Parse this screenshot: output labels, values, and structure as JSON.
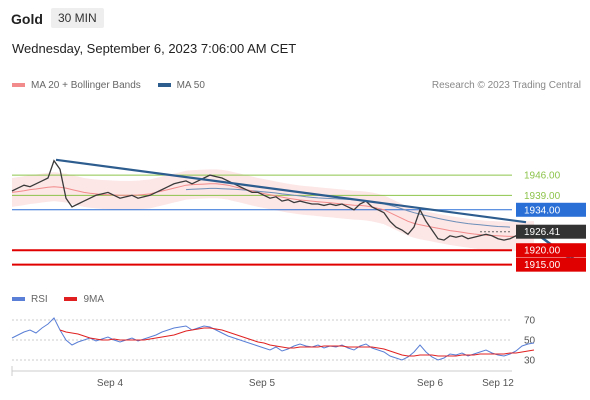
{
  "header": {
    "symbol": "Gold",
    "timeframe": "30 MIN"
  },
  "datetime": "Wednesday, September 6, 2023 7:06:00 AM CET",
  "legend": [
    {
      "label": "MA 20 + Bollinger Bands",
      "color": "#f28b8b"
    },
    {
      "label": "MA 50",
      "color": "#2d5c8f"
    }
  ],
  "credit": "Research © 2023 Trading Central",
  "rsi_legend": [
    {
      "label": "RSI",
      "color": "#5a7fd6"
    },
    {
      "label": "9MA",
      "color": "#e02020"
    }
  ],
  "colors": {
    "resistance": "#8dc44b",
    "pivot": "#2a6fd6",
    "support": "#e00000",
    "trendline": "#2d5c8f",
    "price": "#3a3a3a"
  },
  "chart_data": [
    {
      "type": "line",
      "y_range": [
        1909,
        1972
      ],
      "x_ticks": [
        "Sep 4",
        "Sep 5",
        "Sep 6",
        "Sep 12"
      ],
      "levels": [
        {
          "value": 1946.0,
          "label": "1946.00",
          "kind": "resistance"
        },
        {
          "value": 1939.0,
          "label": "1939.00",
          "kind": "resistance"
        },
        {
          "value": 1934.0,
          "label": "1934.00",
          "kind": "pivot"
        },
        {
          "value": 1926.41,
          "label": "1926.41",
          "kind": "last"
        },
        {
          "value": 1920.0,
          "label": "1920.00",
          "kind": "support"
        },
        {
          "value": 1915.0,
          "label": "1915.00",
          "kind": "support"
        }
      ],
      "price": [
        1940.5,
        1941.5,
        1942.5,
        1942,
        1943,
        1944,
        1945,
        1951,
        1948,
        1938,
        1935,
        1936,
        1937,
        1938,
        1939,
        1939.5,
        1940,
        1939,
        1938,
        1938.5,
        1939,
        1938,
        1938.5,
        1939,
        1940,
        1941,
        1942,
        1943,
        1943.5,
        1944,
        1943,
        1944,
        1945,
        1946,
        1945.5,
        1945,
        1944,
        1943,
        1942,
        1941,
        1940,
        1940,
        1939,
        1938,
        1938.5,
        1937,
        1937.5,
        1936.5,
        1937,
        1936.5,
        1936,
        1936,
        1935.5,
        1936,
        1935.5,
        1936,
        1935,
        1934,
        1936,
        1937,
        1935,
        1934,
        1933,
        1930,
        1928,
        1927,
        1925.5,
        1928,
        1934,
        1930,
        1927,
        1924,
        1923.5,
        1925,
        1924.5,
        1925,
        1924,
        1924.5,
        1925,
        1925.5,
        1925,
        1924,
        1923.5,
        1924,
        1925,
        1925,
        1926,
        1926.41
      ],
      "ma20": [
        1940,
        1940.3,
        1940.6,
        1941,
        1941.2,
        1941.5,
        1941.8,
        1942,
        1941.8,
        1941.5,
        1941,
        1940.5,
        1940,
        1939.7,
        1939.5,
        1939.3,
        1939.2,
        1939.1,
        1939,
        1939,
        1939,
        1939.1,
        1939.3,
        1939.5,
        1940,
        1940.5,
        1941,
        1941.5,
        1942,
        1942.5,
        1942.7,
        1942.8,
        1942.9,
        1943,
        1943,
        1942.8,
        1942.5,
        1942,
        1941.5,
        1941,
        1940.5,
        1940,
        1939.6,
        1939.2,
        1938.8,
        1938.4,
        1938,
        1937.7,
        1937.4,
        1937.2,
        1937,
        1936.8,
        1936.6,
        1936.4,
        1936.2,
        1936,
        1935.8,
        1935.6,
        1935.5,
        1935.3,
        1935,
        1934.5,
        1934,
        1933,
        1932,
        1931,
        1930,
        1929.3,
        1928.8,
        1928.4,
        1928,
        1927.6,
        1927.2,
        1926.8,
        1926.5,
        1926.2,
        1925.9,
        1925.6,
        1925.4,
        1925.2,
        1925.1,
        1925,
        1924.9,
        1924.8,
        1924.8,
        1924.9,
        1925,
        1925.1
      ],
      "ma50": [
        null,
        null,
        null,
        null,
        null,
        null,
        null,
        null,
        null,
        null,
        null,
        null,
        null,
        null,
        null,
        null,
        null,
        null,
        null,
        null,
        null,
        null,
        null,
        null,
        null,
        null,
        null,
        null,
        null,
        1941,
        1941.1,
        1941.2,
        1941.3,
        1941.4,
        1941.4,
        1941.3,
        1941.2,
        1941.1,
        1941,
        1940.8,
        1940.6,
        1940.4,
        1940.2,
        1940,
        1939.8,
        1939.5,
        1939.3,
        1939,
        1938.8,
        1938.5,
        1938.3,
        1938.1,
        1938,
        1937.9,
        1937.8,
        1937.7,
        1937.6,
        1937.5,
        1937.3,
        1937.1,
        1936.8,
        1936.5,
        1936,
        1935.5,
        1935,
        1934.3,
        1933.6,
        1933,
        1932.5,
        1932,
        1931.5,
        1931,
        1930.6,
        1930.2,
        1929.8,
        1929.5,
        1929.2,
        1929,
        1928.8,
        1928.6,
        1928.4,
        1928.2,
        1928.1,
        1928
      ]
    },
    {
      "type": "line",
      "title": "RSI",
      "y_range": [
        20,
        80
      ],
      "y_ticks": [
        70,
        50,
        30
      ],
      "rsi": [
        52,
        55,
        58,
        60,
        57,
        62,
        66,
        72,
        60,
        50,
        45,
        48,
        50,
        52,
        49,
        51,
        53,
        50,
        48,
        50,
        52,
        49,
        51,
        53,
        55,
        58,
        60,
        62,
        63,
        64,
        60,
        62,
        64,
        63,
        60,
        57,
        54,
        52,
        50,
        48,
        46,
        44,
        42,
        40,
        43,
        39,
        41,
        44,
        46,
        44,
        43,
        45,
        42,
        44,
        43,
        45,
        42,
        40,
        44,
        46,
        42,
        40,
        38,
        34,
        32,
        30,
        33,
        38,
        45,
        38,
        33,
        30,
        32,
        36,
        35,
        37,
        34,
        36,
        38,
        40,
        37,
        35,
        34,
        36,
        39,
        44,
        46,
        47
      ],
      "ma9": [
        null,
        null,
        null,
        null,
        null,
        null,
        null,
        null,
        60,
        58,
        57,
        56,
        54,
        52,
        51,
        50,
        50,
        51,
        50,
        50,
        50,
        50,
        50,
        51,
        52,
        53,
        54,
        55,
        57,
        59,
        60,
        61,
        62,
        62,
        61,
        60,
        58,
        56,
        54,
        52,
        50,
        48,
        47,
        45,
        44,
        43,
        42,
        42,
        43,
        43,
        43,
        43,
        44,
        44,
        44,
        44,
        43,
        43,
        43,
        43,
        43,
        42,
        41,
        39,
        37,
        35,
        34,
        34,
        35,
        35,
        35,
        34,
        34,
        34,
        34,
        35,
        35,
        35,
        36,
        36,
        36,
        36,
        36,
        37,
        37,
        38,
        39,
        40
      ]
    }
  ],
  "annotations": {
    "trendline": {
      "from_index": 8,
      "from_value": 1951.3,
      "to_index": 85,
      "to_value": 1929.7
    },
    "forecast_arrow": {
      "from_index": 87,
      "from_value": 1926.41,
      "to_index": 94,
      "to_value": 1915.5
    }
  }
}
